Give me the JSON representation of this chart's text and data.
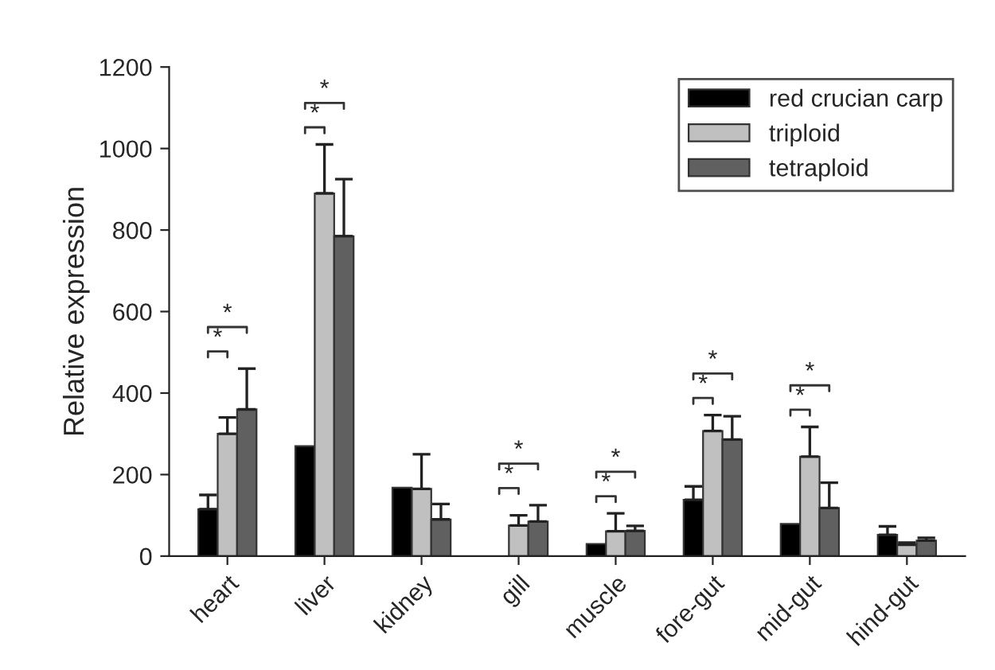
{
  "chart_data": {
    "type": "bar",
    "ylabel": "Relative expression",
    "categories": [
      "heart",
      "liver",
      "kidney",
      "gill",
      "muscle",
      "fore-gut",
      "mid-gut",
      "hind-gut"
    ],
    "series": [
      {
        "name": "red crucian carp",
        "color": "#000000",
        "values": [
          115,
          270,
          168,
          null,
          30,
          138,
          79,
          52
        ],
        "errors": [
          35,
          null,
          null,
          null,
          null,
          33,
          null,
          21
        ]
      },
      {
        "name": "triploid",
        "color": "#c0c0c0",
        "values": [
          300,
          890,
          165,
          75,
          61,
          307,
          244,
          28
        ],
        "errors": [
          40,
          120,
          85,
          25,
          44,
          39,
          73,
          5
        ]
      },
      {
        "name": "tetraploid",
        "color": "#606060",
        "values": [
          360,
          785,
          90,
          85,
          62,
          286,
          118,
          38
        ],
        "errors": [
          100,
          140,
          38,
          40,
          12,
          57,
          62,
          7
        ]
      }
    ],
    "ylim": [
      0,
      1200
    ],
    "yticks": [
      0,
      200,
      400,
      600,
      800,
      1000,
      1200
    ],
    "legend": "top right",
    "annotations": [
      "*",
      "*",
      "*",
      "*",
      "*",
      "*",
      "*",
      "*",
      "*",
      "*",
      "*",
      "*"
    ]
  }
}
